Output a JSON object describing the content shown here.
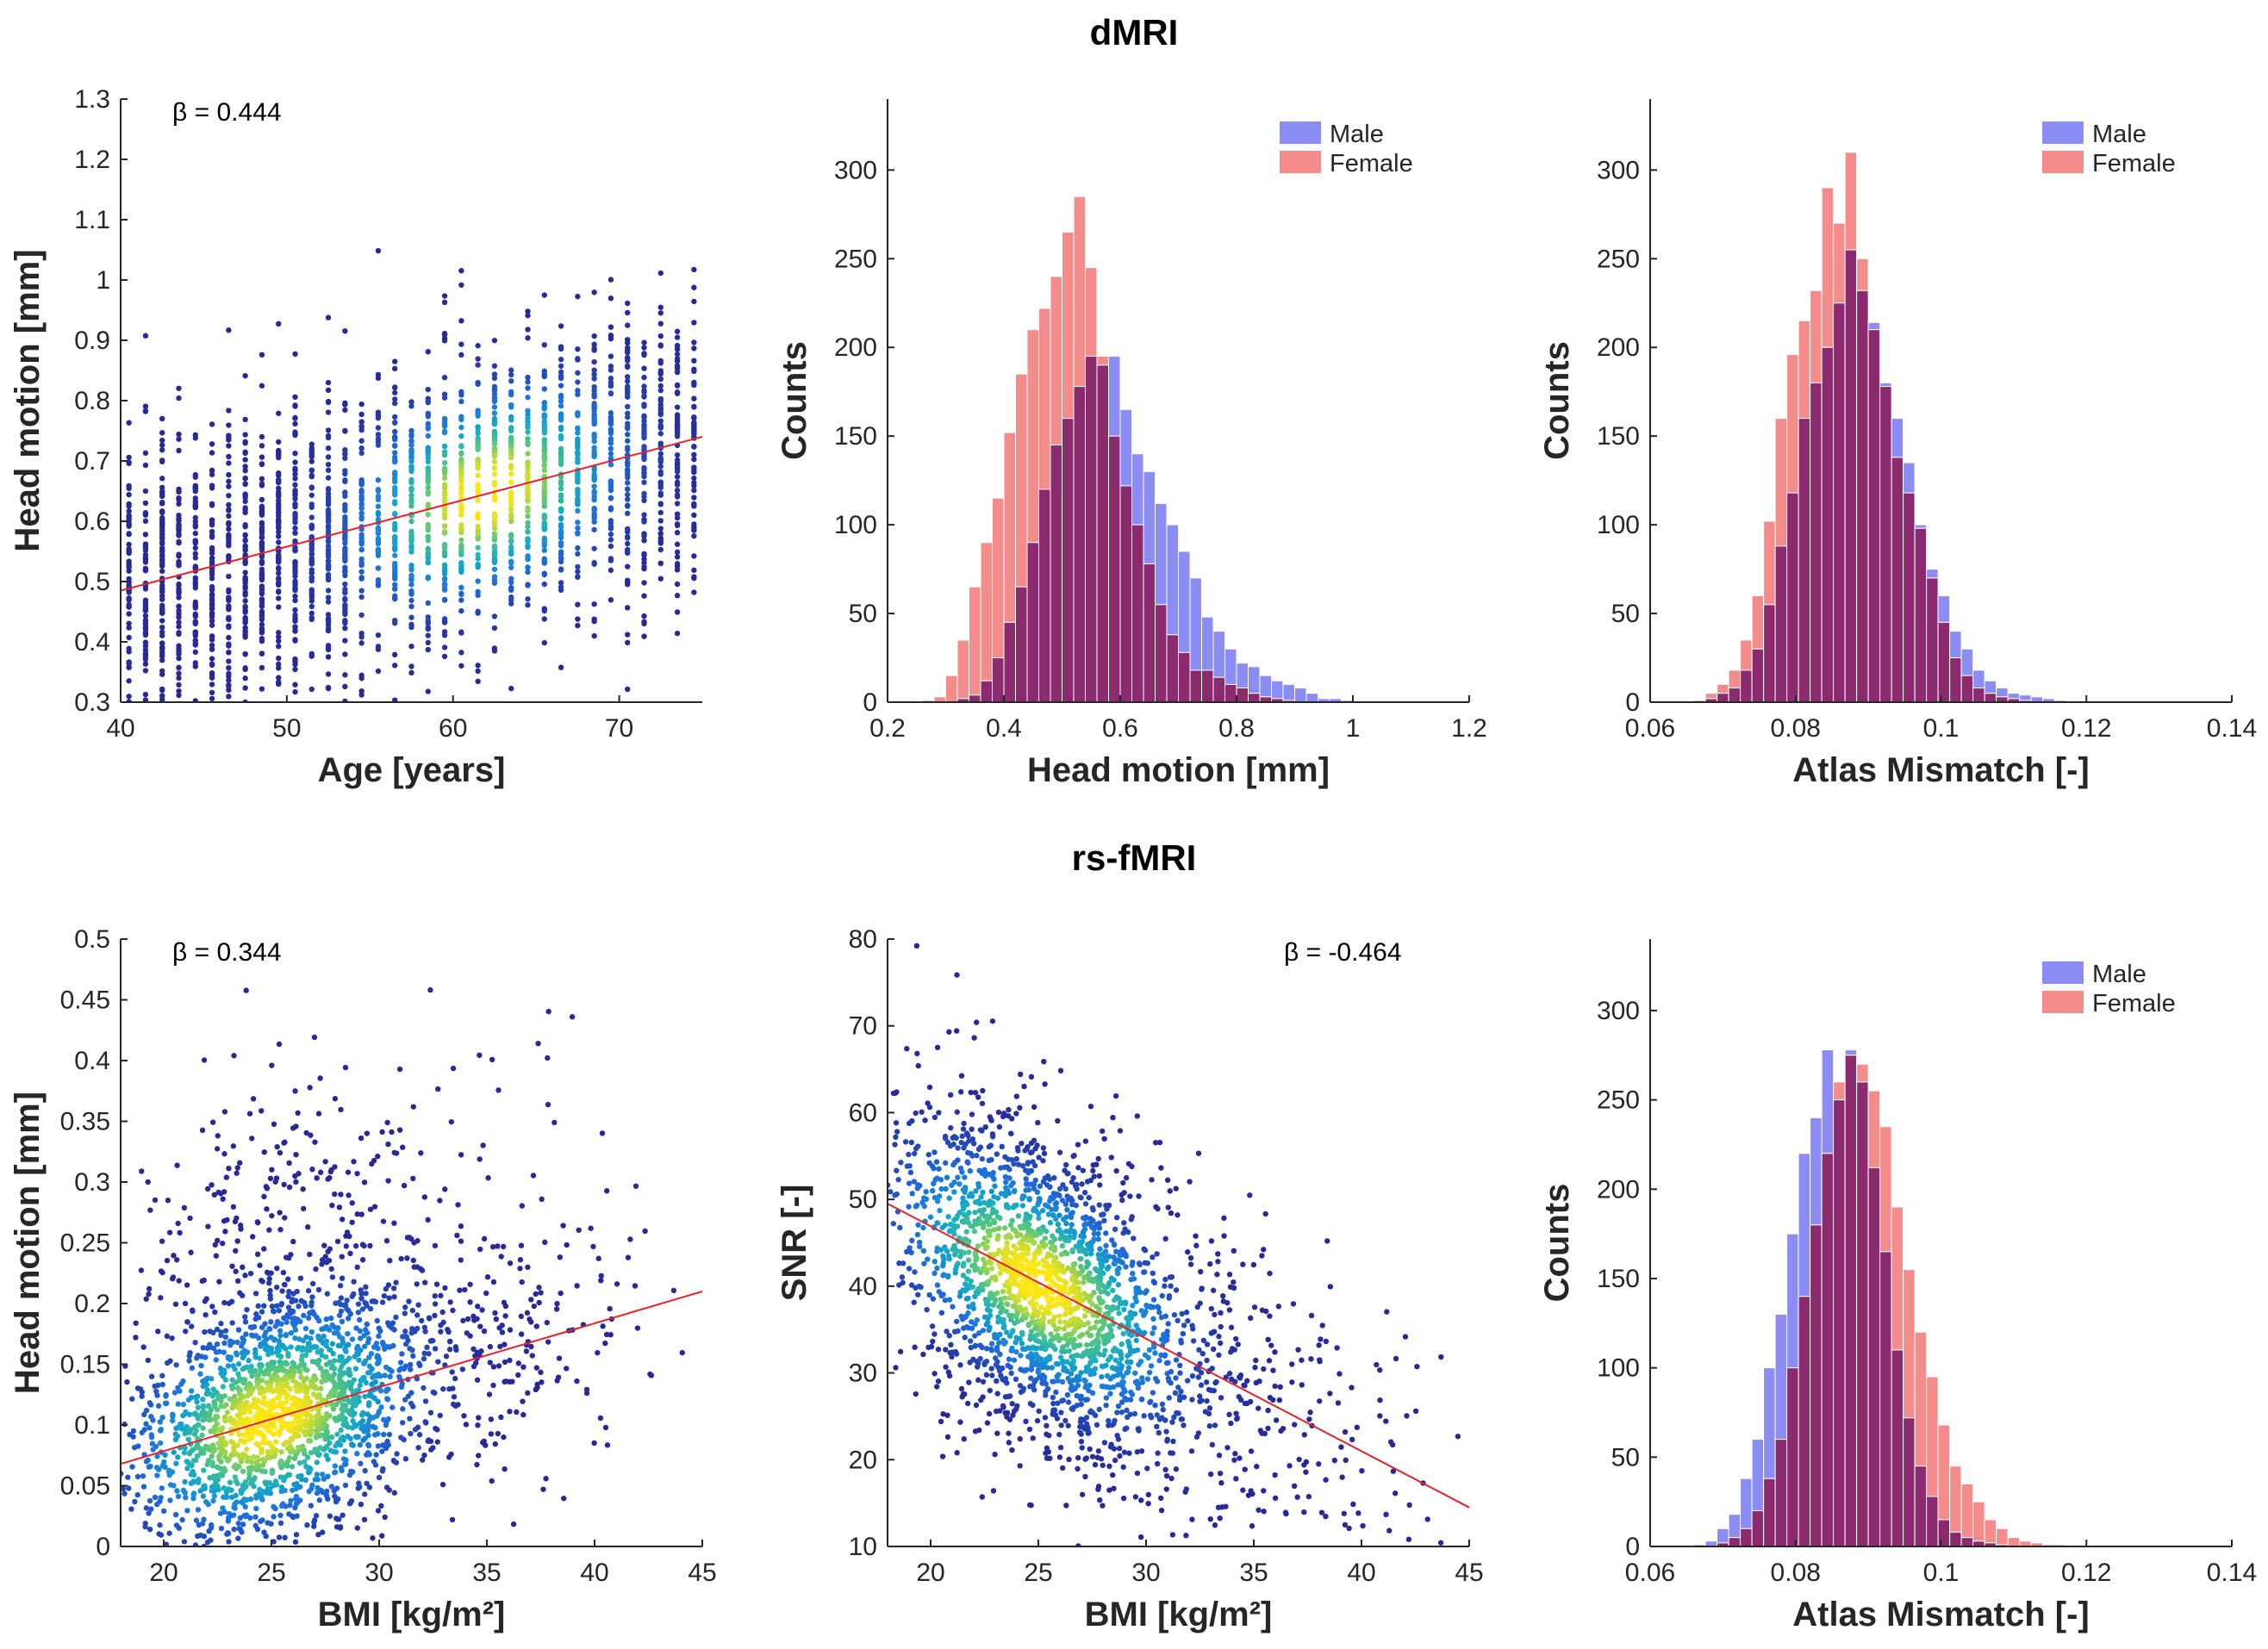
{
  "figure": {
    "row_titles": [
      "dMRI",
      "rs-fMRI"
    ],
    "colors": {
      "male": "#8c8cf5",
      "female": "#f58c8c",
      "overlap": "#8b2a6e",
      "fit": "#e8202a"
    }
  },
  "chart_data": [
    {
      "id": "dmri-age-headmotion",
      "type": "scatter",
      "xlabel": "Age [years]",
      "ylabel": "Head motion [mm]",
      "xlim": [
        40,
        75
      ],
      "ylim": [
        0.3,
        1.3
      ],
      "xticks": [
        40,
        50,
        60,
        70
      ],
      "yticks": [
        0.3,
        0.4,
        0.5,
        0.6,
        0.7,
        0.8,
        0.9,
        1,
        1.1,
        1.2,
        1.3
      ],
      "annotation": "β = 0.444",
      "fit_line": {
        "x": [
          40,
          75
        ],
        "y": [
          0.485,
          0.74
        ]
      },
      "density_center": {
        "x": 62,
        "y": 0.63
      }
    },
    {
      "id": "dmri-headmotion-hist",
      "type": "histogram",
      "xlabel": "Head motion [mm]",
      "ylabel": "Counts",
      "xlim": [
        0.2,
        1.2
      ],
      "ylim": [
        0,
        340
      ],
      "xticks": [
        0.2,
        0.4,
        0.6,
        0.8,
        1,
        1.2
      ],
      "yticks": [
        0,
        50,
        100,
        150,
        200,
        250,
        300
      ],
      "legend": [
        "Male",
        "Female"
      ],
      "bin_start": 0.26,
      "bin_width": 0.02,
      "series": [
        {
          "name": "Male",
          "values": [
            0,
            0,
            0,
            2,
            4,
            12,
            25,
            45,
            65,
            90,
            120,
            145,
            160,
            178,
            195,
            190,
            195,
            165,
            140,
            130,
            112,
            100,
            85,
            70,
            48,
            40,
            30,
            22,
            20,
            15,
            12,
            10,
            8,
            5,
            2,
            2,
            1,
            0,
            0,
            0,
            0,
            0,
            0,
            0,
            0,
            0,
            0,
            0
          ]
        },
        {
          "name": "Female",
          "values": [
            1,
            3,
            15,
            35,
            65,
            90,
            115,
            152,
            185,
            210,
            222,
            240,
            265,
            285,
            245,
            195,
            150,
            122,
            100,
            78,
            55,
            38,
            28,
            18,
            18,
            14,
            10,
            8,
            5,
            3,
            2,
            1,
            0,
            0,
            0,
            0,
            0,
            0,
            0,
            0,
            0,
            0,
            0,
            0,
            0,
            0,
            0,
            0
          ]
        }
      ]
    },
    {
      "id": "dmri-atlas-hist",
      "type": "histogram",
      "xlabel": "Atlas Mismatch [-]",
      "ylabel": "Counts",
      "xlim": [
        0.06,
        0.14
      ],
      "ylim": [
        0,
        340
      ],
      "xticks": [
        0.06,
        0.08,
        0.1,
        0.12,
        0.14
      ],
      "yticks": [
        0,
        50,
        100,
        150,
        200,
        250,
        300
      ],
      "legend": [
        "Male",
        "Female"
      ],
      "bin_start": 0.066,
      "bin_width": 0.0016,
      "series": [
        {
          "name": "Male",
          "values": [
            0,
            2,
            5,
            8,
            18,
            30,
            55,
            88,
            118,
            160,
            180,
            200,
            225,
            255,
            232,
            214,
            180,
            160,
            135,
            100,
            75,
            60,
            40,
            30,
            18,
            12,
            8,
            5,
            4,
            3,
            2,
            1
          ]
        },
        {
          "name": "Female",
          "values": [
            1,
            5,
            10,
            18,
            35,
            60,
            102,
            160,
            196,
            215,
            232,
            290,
            270,
            310,
            250,
            210,
            178,
            138,
            118,
            98,
            70,
            45,
            25,
            15,
            8,
            5,
            3,
            2,
            1,
            0,
            0,
            0
          ]
        }
      ]
    },
    {
      "id": "rsfmri-bmi-headmotion",
      "type": "scatter",
      "xlabel": "BMI [kg/m²]",
      "ylabel": "Head motion [mm]",
      "xlim": [
        18,
        45
      ],
      "ylim": [
        0,
        0.5
      ],
      "xticks": [
        20,
        25,
        30,
        35,
        40,
        45
      ],
      "yticks": [
        0,
        0.05,
        0.1,
        0.15,
        0.2,
        0.25,
        0.3,
        0.35,
        0.4,
        0.45,
        0.5
      ],
      "annotation": "β = 0.344",
      "fit_line": {
        "x": [
          18,
          45
        ],
        "y": [
          0.068,
          0.21
        ]
      },
      "density_center": {
        "x": 25,
        "y": 0.09
      }
    },
    {
      "id": "rsfmri-bmi-snr",
      "type": "scatter",
      "xlabel": "BMI [kg/m²]",
      "ylabel": "SNR [-]",
      "xlim": [
        18,
        45
      ],
      "ylim": [
        10,
        80
      ],
      "xticks": [
        20,
        25,
        30,
        35,
        40,
        45
      ],
      "yticks": [
        10,
        20,
        30,
        40,
        50,
        60,
        70,
        80
      ],
      "annotation": "β = -0.464",
      "fit_line": {
        "x": [
          18,
          45
        ],
        "y": [
          49.5,
          14.5
        ]
      },
      "density_center": {
        "x": 25,
        "y": 40
      }
    },
    {
      "id": "rsfmri-atlas-hist",
      "type": "histogram",
      "xlabel": "Atlas Mismatch [-]",
      "ylabel": "Counts",
      "xlim": [
        0.06,
        0.14
      ],
      "ylim": [
        0,
        340
      ],
      "xticks": [
        0.06,
        0.08,
        0.1,
        0.12,
        0.14
      ],
      "yticks": [
        0,
        50,
        100,
        150,
        200,
        250,
        300
      ],
      "legend": [
        "Male",
        "Female"
      ],
      "bin_start": 0.066,
      "bin_width": 0.0016,
      "series": [
        {
          "name": "Male",
          "values": [
            1,
            3,
            10,
            18,
            38,
            60,
            100,
            130,
            175,
            220,
            240,
            278,
            250,
            278,
            260,
            212,
            165,
            110,
            72,
            45,
            28,
            15,
            8,
            5,
            3,
            2,
            1,
            0,
            0,
            0,
            0,
            0
          ]
        },
        {
          "name": "Female",
          "values": [
            0,
            0,
            2,
            5,
            10,
            20,
            38,
            60,
            100,
            140,
            180,
            220,
            260,
            275,
            270,
            255,
            235,
            190,
            155,
            120,
            95,
            68,
            45,
            35,
            25,
            15,
            10,
            5,
            3,
            2,
            1,
            1
          ]
        }
      ]
    }
  ]
}
